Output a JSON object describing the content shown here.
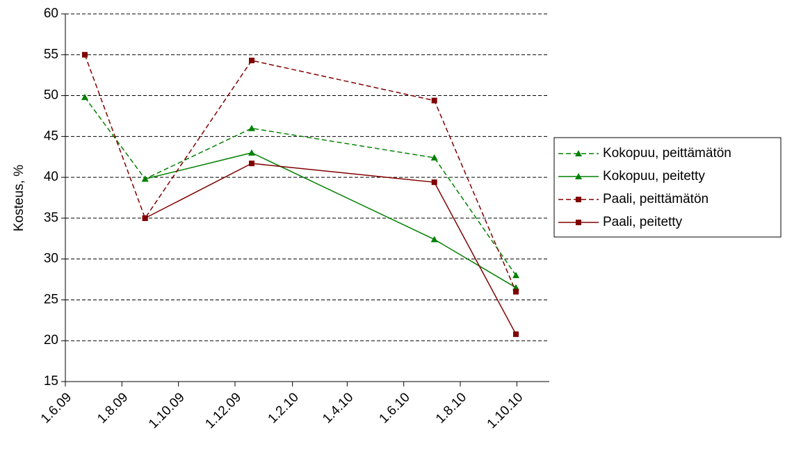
{
  "chart_data": {
    "type": "line",
    "y_label": "Kosteus, %",
    "x": [
      "2009-06-22",
      "2009-08-26",
      "2009-12-19",
      "2010-07-04",
      "2010-09-30"
    ],
    "xlim": [
      "2009-06-01",
      "2010-11-05"
    ],
    "xticks": [
      {
        "value": "2009-06-01",
        "label": "1.6.09"
      },
      {
        "value": "2009-08-01",
        "label": "1.8.09"
      },
      {
        "value": "2009-10-01",
        "label": "1.10.09"
      },
      {
        "value": "2009-12-01",
        "label": "1.12.09"
      },
      {
        "value": "2010-02-01",
        "label": "1.2.10"
      },
      {
        "value": "2010-04-01",
        "label": "1.4.10"
      },
      {
        "value": "2010-06-01",
        "label": "1.6.10"
      },
      {
        "value": "2010-08-01",
        "label": "1.8.10"
      },
      {
        "value": "2010-10-01",
        "label": "1.10.10"
      }
    ],
    "ylim": [
      15,
      60
    ],
    "yticks": [
      15,
      20,
      25,
      30,
      35,
      40,
      45,
      50,
      55,
      60
    ],
    "grid": true,
    "legend": "right",
    "series": [
      {
        "name": "Kokopuu, peittämätön",
        "color": "#008000",
        "line_style": "dashed",
        "marker": "triangle",
        "values": [
          49.8,
          39.8,
          46,
          42.4,
          28
        ]
      },
      {
        "name": "Kokopuu, peitetty",
        "color": "#008000",
        "line_style": "solid",
        "marker": "triangle",
        "values": [
          null,
          39.8,
          43,
          32.4,
          26.5
        ]
      },
      {
        "name": "Paali, peittämätön",
        "color": "#800000",
        "line_style": "dashed",
        "marker": "square",
        "values": [
          55,
          35,
          54.3,
          49.4,
          26
        ]
      },
      {
        "name": "Paali, peitetty",
        "color": "#800000",
        "line_style": "solid",
        "marker": "square",
        "values": [
          null,
          35,
          41.7,
          39.4,
          20.8
        ]
      }
    ]
  }
}
